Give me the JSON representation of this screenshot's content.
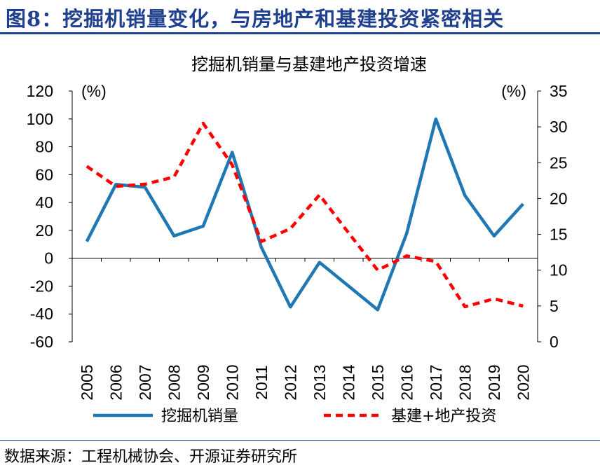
{
  "figure": {
    "title": "图8：挖掘机销量变化，与房地产和基建投资紧密相关",
    "source": "数据来源：工程机械协会、开源证券研究所"
  },
  "colors": {
    "title": "#1f3f8f",
    "excavator": "#1f77b4",
    "investment": "#ff0000"
  },
  "chart_data": {
    "type": "line",
    "title": "挖掘机销量与基建地产投资增速",
    "x": [
      "2005",
      "2006",
      "2007",
      "2008",
      "2009",
      "2010",
      "2011",
      "2012",
      "2013",
      "2014",
      "2015",
      "2016",
      "2017",
      "2018",
      "2019",
      "2020"
    ],
    "y_left": {
      "unit_label": "(%)",
      "min": -60,
      "max": 120,
      "step": 20,
      "ticks": [
        "-60",
        "-40",
        "-20",
        "0",
        "20",
        "40",
        "60",
        "80",
        "100",
        "120"
      ]
    },
    "y_right": {
      "unit_label": "(%)",
      "min": 0,
      "max": 35,
      "step": 5,
      "ticks": [
        "0",
        "5",
        "10",
        "15",
        "20",
        "25",
        "30",
        "35"
      ]
    },
    "series": [
      {
        "name": "挖掘机销量",
        "axis": "left",
        "style": "solid",
        "values": [
          12,
          53,
          51,
          16,
          23,
          76,
          8,
          -35,
          -3,
          -20,
          -37,
          18,
          100,
          45,
          16,
          39
        ]
      },
      {
        "name": "基建+地产投资",
        "axis": "right",
        "style": "dashed",
        "values": [
          24.5,
          21.7,
          22,
          23,
          30.5,
          24.7,
          14,
          15.8,
          20.5,
          15.2,
          10,
          12,
          11.2,
          4.9,
          6,
          5
        ]
      }
    ],
    "legend_position": "bottom"
  }
}
